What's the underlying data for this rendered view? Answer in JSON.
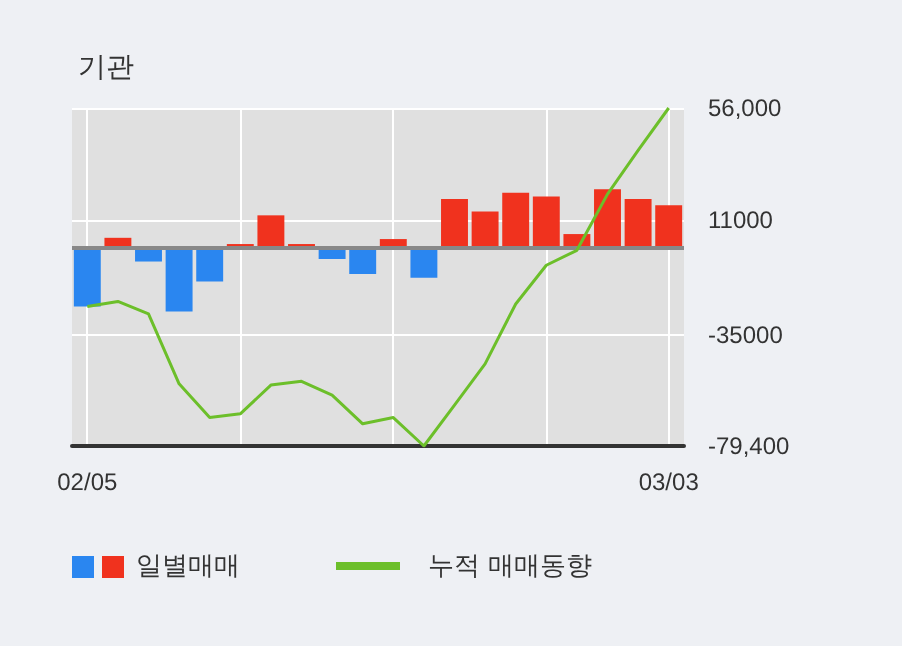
{
  "chart_data": {
    "type": "bar",
    "title": "기관",
    "categories": [
      "02/05",
      null,
      null,
      null,
      null,
      null,
      null,
      null,
      null,
      null,
      null,
      null,
      null,
      null,
      null,
      null,
      null,
      null,
      null,
      "03/03"
    ],
    "series": [
      {
        "name": "일별매매",
        "colors": [
          "#2a86f0",
          "#f0321e",
          "#2a86f0",
          "#2a86f0",
          "#2a86f0",
          "#f0321e",
          "#f0321e",
          "#f0321e",
          "#2a86f0",
          "#2a86f0",
          "#f0321e",
          "#2a86f0",
          "#f0321e",
          "#f0321e",
          "#f0321e",
          "#f0321e",
          "#f0321e",
          "#f0321e",
          "#f0321e",
          "#f0321e"
        ],
        "values": [
          -23500,
          4000,
          -5500,
          -25500,
          -13500,
          1500,
          13000,
          1500,
          -4500,
          -10500,
          3500,
          -12000,
          19500,
          14500,
          22000,
          20500,
          5500,
          23500,
          19500,
          17000
        ]
      },
      {
        "name": "누적 매매동향",
        "type": "line",
        "color": "#6cbf2a",
        "values": [
          -23500,
          -21500,
          -26500,
          -54500,
          -68000,
          -66500,
          -55000,
          -53500,
          -59000,
          -70500,
          -68000,
          -79400,
          -63000,
          -46500,
          -22500,
          -7000,
          -1000,
          21500,
          39000,
          56000
        ]
      }
    ],
    "ylim": [
      -79400,
      56000
    ],
    "yticks": [
      {
        "value": 56000,
        "label": "56,000"
      },
      {
        "value": 11000,
        "label": "11000"
      },
      {
        "value": -35000,
        "label": "-35000"
      },
      {
        "value": -79400,
        "label": "-79,400"
      }
    ],
    "ref_lines": [
      {
        "axis": "y",
        "value": 0,
        "color": "#888888"
      }
    ],
    "grid": true,
    "legend": "bottom",
    "marker": "none"
  }
}
